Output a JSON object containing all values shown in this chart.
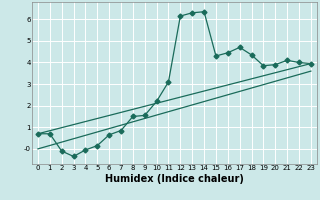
{
  "xlabel": "Humidex (Indice chaleur)",
  "bg_color": "#cce8e8",
  "grid_color": "#ffffff",
  "line_color": "#1a6b5a",
  "xlim": [
    -0.5,
    23.5
  ],
  "ylim": [
    -0.7,
    6.8
  ],
  "xticks": [
    0,
    1,
    2,
    3,
    4,
    5,
    6,
    7,
    8,
    9,
    10,
    11,
    12,
    13,
    14,
    15,
    16,
    17,
    18,
    19,
    20,
    21,
    22,
    23
  ],
  "yticks": [
    0,
    1,
    2,
    3,
    4,
    5,
    6
  ],
  "ytick_labels": [
    "-0",
    "1",
    "2",
    "3",
    "4",
    "5",
    "6"
  ],
  "series1_x": [
    0,
    1,
    2,
    3,
    4,
    5,
    6,
    7,
    8,
    9,
    10,
    11,
    12,
    13,
    14,
    15,
    16,
    17,
    18,
    19,
    20,
    21,
    22,
    23
  ],
  "series1_y": [
    0.7,
    0.7,
    -0.1,
    -0.35,
    -0.05,
    0.15,
    0.65,
    0.85,
    1.5,
    1.55,
    2.2,
    3.1,
    6.15,
    6.3,
    6.35,
    4.3,
    4.45,
    4.7,
    4.35,
    3.85,
    3.9,
    4.1,
    4.0,
    3.95
  ],
  "series2_x": [
    0,
    23
  ],
  "series2_y": [
    0.7,
    3.95
  ],
  "series3_x": [
    0,
    23
  ],
  "series3_y": [
    0.0,
    3.6
  ],
  "marker": "D",
  "markersize": 2.5,
  "linewidth": 0.9,
  "xlabel_fontsize": 7,
  "tick_fontsize": 5,
  "xlabel_fontweight": "bold"
}
